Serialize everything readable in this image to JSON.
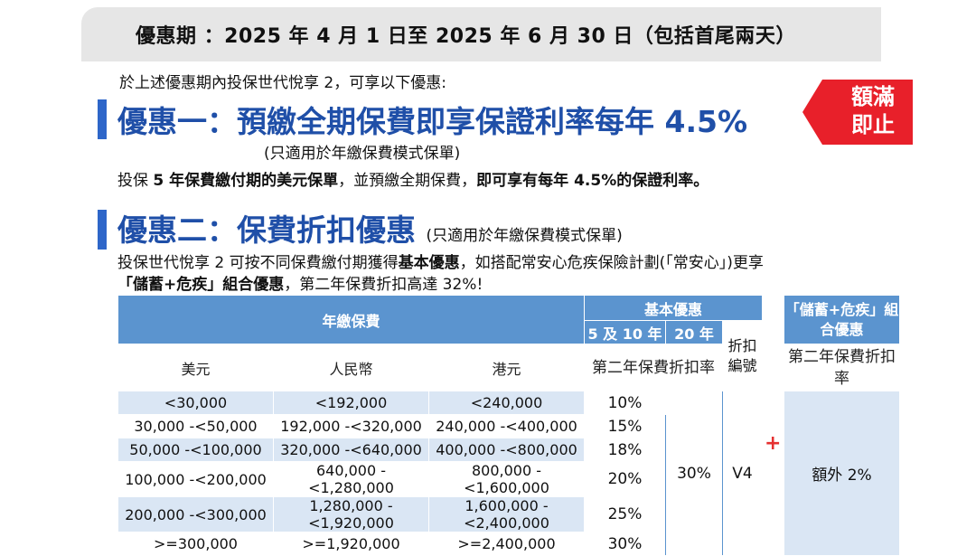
{
  "period": "優惠期 ：2025 年 4 月 1 日至 2025 年 6 月 30 日（包括首尾兩天）",
  "intro": "於上述優惠期內投保世代悅享 2，可享以下優惠:",
  "offer1": {
    "title": "優惠一：預繳全期保費即享保證利率每年 4.5%",
    "note": "(只適用於年繳保費模式保單)",
    "desc_pre": "投保 ",
    "desc_b1": "5 年保費繳付期的美元保單",
    "desc_mid": "，並預繳全期保費，",
    "desc_b2": "即可享有每年 4.5%的保證利率。"
  },
  "badge": {
    "line1": "額滿",
    "line2": "即止",
    "color": "#e8202a"
  },
  "offer2": {
    "title": "優惠二：保費折扣優惠",
    "note": "(只適用於年繳保費模式保單)",
    "line1_pre": "投保世代悅享 2 可按不同保費繳付期獲得",
    "line1_b": "基本優惠",
    "line1_post": "，如搭配常安心危疾保險計劃(「常安心」)更享",
    "line2_b": "「儲蓄+危疾」組合優惠",
    "line2_post": "，第二年保費折扣高達 32%!"
  },
  "table": {
    "annual_premium": "年繳保費",
    "basic_offer": "基本優惠",
    "period_5_10": "5 及 10 年",
    "period_20": "20 年",
    "discount_code": "折扣編號",
    "combo_offer": "「儲蓄+危疾」組合優惠",
    "col_usd": "美元",
    "col_rmb": "人民幣",
    "col_hkd": "港元",
    "second_year_rate": "第二年保費折扣率",
    "combo_rate_label": "第二年保費折扣率",
    "rows": [
      {
        "usd": "<30,000",
        "rmb": "<192,000",
        "hkd": "<240,000",
        "rate": "10%"
      },
      {
        "usd": "30,000 -<50,000",
        "rmb": "192,000 -<320,000",
        "hkd": "240,000 -<400,000",
        "rate": "15%"
      },
      {
        "usd": "50,000 -<100,000",
        "rmb": "320,000 -<640,000",
        "hkd": "400,000 -<800,000",
        "rate": "18%"
      },
      {
        "usd": "100,000 -<200,000",
        "rmb": "640,000 -<1,280,000",
        "hkd": "800,000 -<1,600,000",
        "rate": "20%"
      },
      {
        "usd": "200,000 -<300,000",
        "rmb": "1,280,000 -<1,920,000",
        "hkd": "1,600,000 -<2,400,000",
        "rate": "25%"
      },
      {
        "usd": ">=300,000",
        "rmb": ">=1,920,000",
        "hkd": ">=2,400,000",
        "rate": "30%"
      }
    ],
    "rate_20yr": "30%",
    "code": "V4",
    "plus": "+",
    "combo_extra": "額外 2%"
  },
  "colors": {
    "accent_blue": "#1f4fa8",
    "header_blue": "#5b94cf",
    "light_blue": "#dae6f4",
    "red": "#e8202a"
  }
}
